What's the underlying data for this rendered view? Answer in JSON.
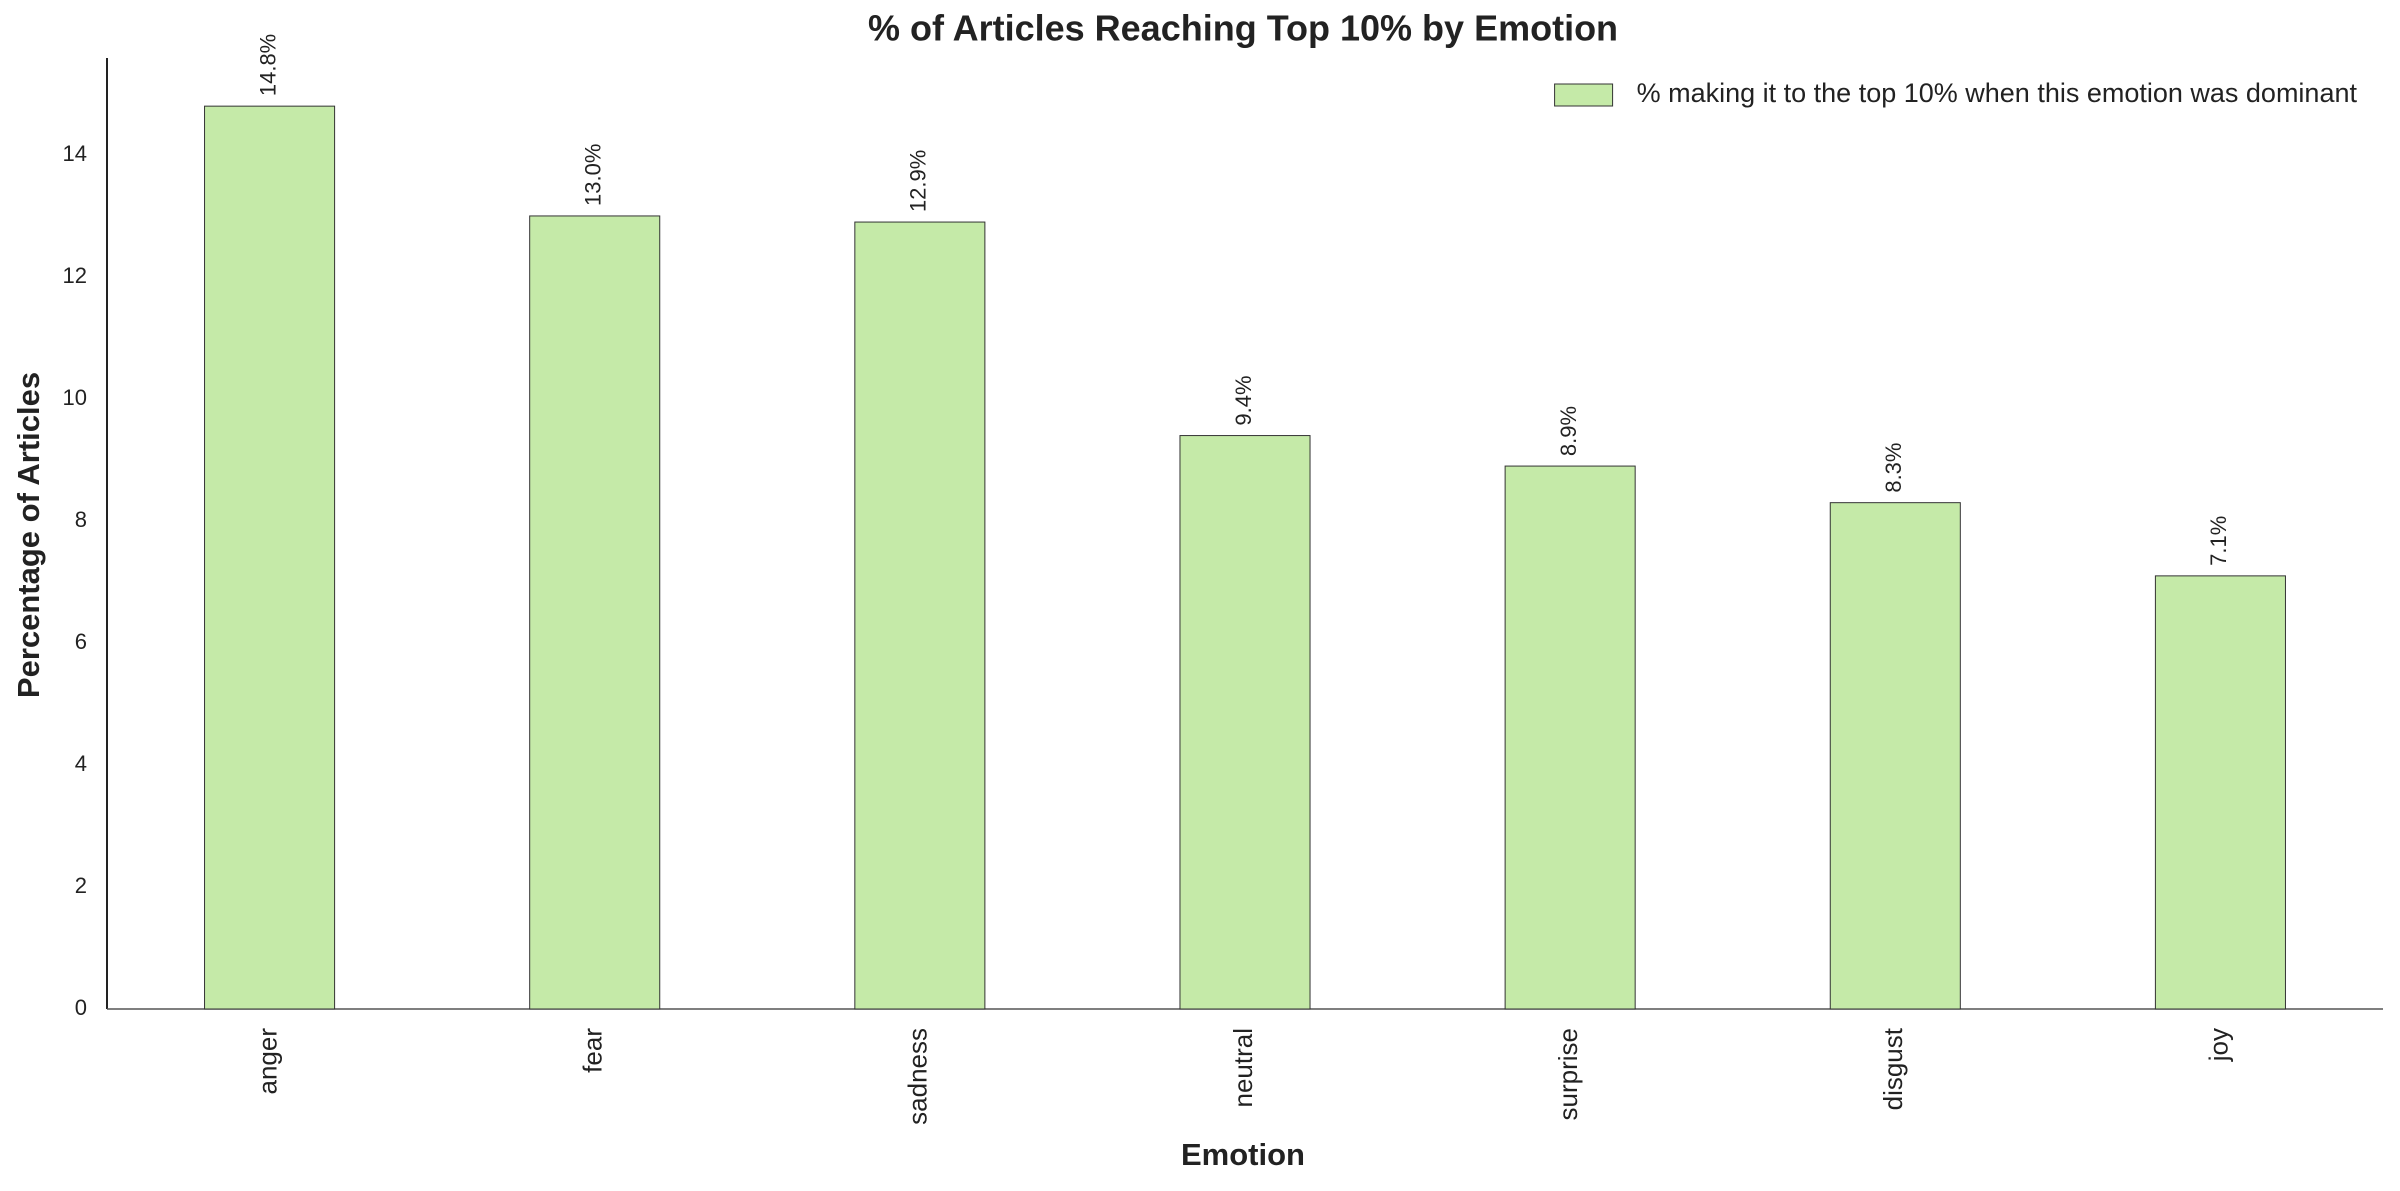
{
  "chart_data": {
    "type": "bar",
    "title": "% of Articles Reaching Top 10% by Emotion",
    "x_label": "Emotion",
    "y_label": "Percentage of Articles",
    "categories": [
      "anger",
      "fear",
      "sadness",
      "neutral",
      "surprise",
      "disgust",
      "joy"
    ],
    "series": [
      {
        "name": "% making it to the top 10% when this emotion was dominant",
        "color": "#c5eaa8",
        "values": [
          14.8,
          13.0,
          12.9,
          9.4,
          8.9,
          8.3,
          7.1
        ],
        "value_labels": [
          "14.8%",
          "13.0%",
          "12.9%",
          "9.4%",
          "8.9%",
          "8.3%",
          "7.1%"
        ]
      }
    ],
    "ylim": [
      0,
      15.54
    ],
    "yticks": [
      0,
      2,
      4,
      6,
      8,
      10,
      12,
      14
    ],
    "grid": false,
    "legend": "upper right"
  }
}
